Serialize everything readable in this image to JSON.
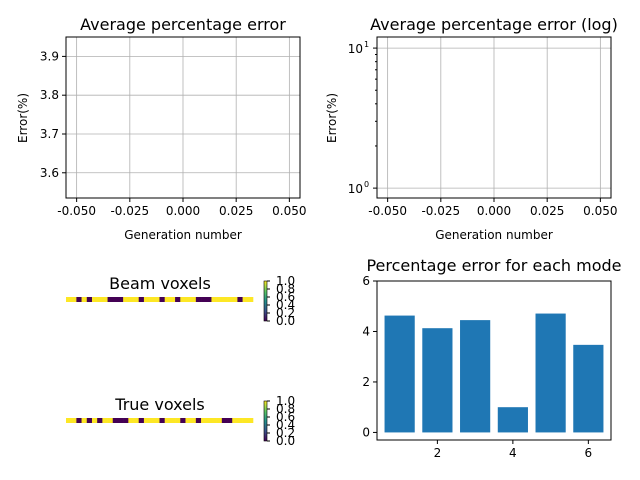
{
  "colors": {
    "bar": "#1f77b4",
    "grid": "#b0b0b0",
    "axis": "#000000",
    "viridis_dark": "#440154",
    "viridis_yellow": "#fde725"
  },
  "chart_data": [
    {
      "id": "avg",
      "type": "line",
      "title": "Average percentage error",
      "xlabel": "Generation number",
      "ylabel": "Error(%)",
      "xlim": [
        -0.055,
        0.055
      ],
      "ylim": [
        3.535,
        3.95
      ],
      "xticks": [
        "-0.050",
        "-0.025",
        "0.000",
        "0.025",
        "0.050"
      ],
      "xtick_values": [
        -0.05,
        -0.025,
        0,
        0.025,
        0.05
      ],
      "yticks": [
        "3.6",
        "3.7",
        "3.8",
        "3.9"
      ],
      "ytick_values": [
        3.6,
        3.7,
        3.8,
        3.9
      ],
      "grid": true,
      "series": [
        {
          "x": [],
          "y": []
        }
      ]
    },
    {
      "id": "log",
      "type": "line",
      "title": "Average percentage error (log)",
      "xlabel": "Generation number",
      "ylabel": "Error(%)",
      "yscale": "log",
      "xlim": [
        -0.055,
        0.055
      ],
      "ylim": [
        0.85,
        12
      ],
      "xticks": [
        "-0.050",
        "-0.025",
        "0.000",
        "0.025",
        "0.050"
      ],
      "xtick_values": [
        -0.05,
        -0.025,
        0,
        0.025,
        0.05
      ],
      "yticks_base": [
        "10",
        "10"
      ],
      "yticks_exp": [
        "0",
        "1"
      ],
      "ytick_values": [
        1,
        10
      ],
      "grid": true,
      "series": [
        {
          "x": [],
          "y": []
        }
      ]
    },
    {
      "id": "modes",
      "type": "bar",
      "title": "Percentage error for each mode",
      "x": [
        1,
        2,
        3,
        4,
        5,
        6
      ],
      "values": [
        4.63,
        4.13,
        4.45,
        1.0,
        4.71,
        3.47
      ],
      "xlim": [
        0.4,
        6.6
      ],
      "ylim": [
        -0.3,
        6
      ],
      "xticks": [
        "2",
        "4",
        "6"
      ],
      "xtick_values": [
        2,
        4,
        6
      ],
      "yticks": [
        "0",
        "2",
        "4",
        "6"
      ],
      "ytick_values": [
        0,
        2,
        4,
        6
      ],
      "grid": false
    },
    {
      "id": "beam",
      "type": "heatmap",
      "title": "Beam voxels",
      "cells": [
        1,
        1,
        0,
        1,
        0,
        1,
        1,
        1,
        0,
        0,
        0,
        1,
        1,
        1,
        0,
        1,
        1,
        1,
        0,
        1,
        1,
        0,
        1,
        1,
        1,
        0,
        0,
        0,
        1,
        1,
        1,
        1,
        1,
        0,
        1,
        1
      ],
      "colorbar_ticks": [
        "1.0",
        "0.8",
        "0.6",
        "0.4",
        "0.2",
        "0.0"
      ]
    },
    {
      "id": "true",
      "type": "heatmap",
      "title": "True voxels",
      "cells": [
        1,
        1,
        0,
        1,
        0,
        1,
        0,
        1,
        1,
        0,
        0,
        0,
        1,
        1,
        0,
        1,
        1,
        1,
        0,
        1,
        1,
        1,
        0,
        1,
        1,
        0,
        1,
        1,
        1,
        1,
        0,
        0,
        1,
        1,
        1,
        1
      ],
      "colorbar_ticks": [
        "1.0",
        "0.8",
        "0.6",
        "0.4",
        "0.2",
        "0.0"
      ]
    }
  ]
}
